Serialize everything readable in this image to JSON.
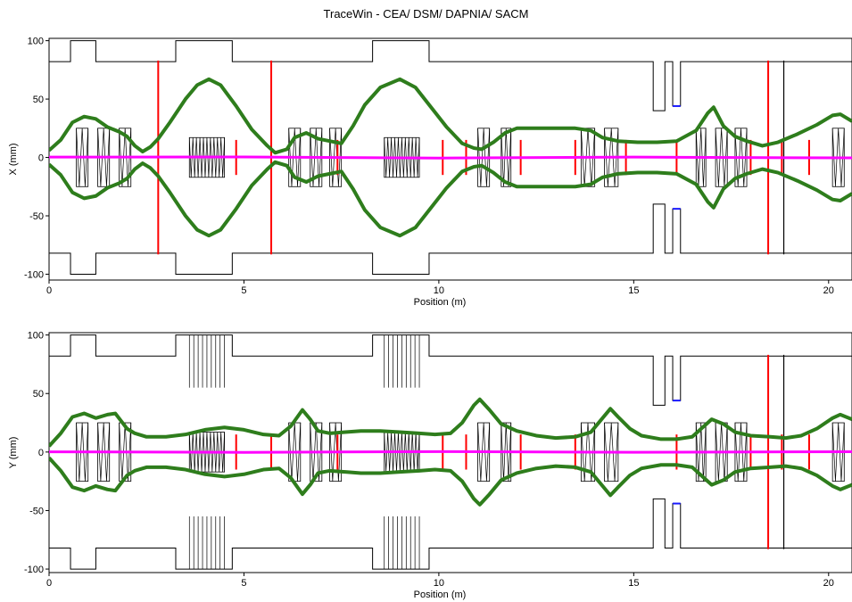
{
  "title": "TraceWin - CEA/ DSM/ DAPNIA/ SACM",
  "colors": {
    "envelope": "#2e7d1c",
    "centroid": "#ff00ff",
    "elements": "#000000",
    "marker": "#ff0000",
    "aperture_marker": "#1a1aff"
  },
  "chart_data": [
    {
      "type": "line",
      "name": "x-plane",
      "xlabel": "Position (m)",
      "ylabel": "X (mm)",
      "xlim": [
        0,
        20.6
      ],
      "ylim": [
        -105,
        102
      ],
      "xticks": [
        0,
        5,
        10,
        15,
        20
      ],
      "yticks": [
        -100,
        -50,
        0,
        50,
        100
      ],
      "grid": false,
      "aperture": [
        [
          0,
          82
        ],
        [
          0.55,
          82
        ],
        [
          0.55,
          100
        ],
        [
          1.2,
          100
        ],
        [
          1.2,
          82
        ],
        [
          3.25,
          82
        ],
        [
          3.25,
          100
        ],
        [
          4.7,
          100
        ],
        [
          4.7,
          82
        ],
        [
          8.3,
          82
        ],
        [
          8.3,
          100
        ],
        [
          9.75,
          100
        ],
        [
          9.75,
          82
        ],
        [
          15.5,
          82
        ],
        [
          15.5,
          40
        ],
        [
          15.8,
          40
        ],
        [
          15.8,
          82
        ],
        [
          16,
          82
        ],
        [
          16,
          44
        ],
        [
          16.2,
          44
        ],
        [
          16.2,
          82
        ],
        [
          20.6,
          82
        ]
      ],
      "envelope": [
        [
          0,
          6
        ],
        [
          0.3,
          15
        ],
        [
          0.6,
          30
        ],
        [
          0.9,
          35
        ],
        [
          1.2,
          33
        ],
        [
          1.5,
          26
        ],
        [
          1.8,
          22
        ],
        [
          2.0,
          18
        ],
        [
          2.2,
          10
        ],
        [
          2.4,
          5
        ],
        [
          2.6,
          9
        ],
        [
          2.8,
          16
        ],
        [
          3.1,
          30
        ],
        [
          3.5,
          50
        ],
        [
          3.8,
          62
        ],
        [
          4.1,
          67
        ],
        [
          4.4,
          62
        ],
        [
          4.8,
          44
        ],
        [
          5.2,
          24
        ],
        [
          5.6,
          10
        ],
        [
          5.8,
          4
        ],
        [
          6.1,
          7
        ],
        [
          6.3,
          17
        ],
        [
          6.6,
          21
        ],
        [
          6.9,
          16
        ],
        [
          7.2,
          14
        ],
        [
          7.5,
          12
        ],
        [
          7.8,
          27
        ],
        [
          8.1,
          45
        ],
        [
          8.5,
          60
        ],
        [
          9.0,
          67
        ],
        [
          9.4,
          60
        ],
        [
          9.8,
          43
        ],
        [
          10.2,
          26
        ],
        [
          10.6,
          12
        ],
        [
          10.9,
          8
        ],
        [
          11.1,
          7
        ],
        [
          11.4,
          13
        ],
        [
          11.7,
          21
        ],
        [
          12.0,
          25
        ],
        [
          12.5,
          25
        ],
        [
          13.0,
          25
        ],
        [
          13.5,
          25
        ],
        [
          13.9,
          23
        ],
        [
          14.2,
          17
        ],
        [
          14.6,
          14
        ],
        [
          15.1,
          13
        ],
        [
          15.6,
          13
        ],
        [
          16.1,
          14
        ],
        [
          16.6,
          23
        ],
        [
          16.9,
          38
        ],
        [
          17.05,
          43
        ],
        [
          17.3,
          27
        ],
        [
          17.6,
          18
        ],
        [
          17.9,
          14
        ],
        [
          18.3,
          10
        ],
        [
          18.7,
          13
        ],
        [
          19.2,
          20
        ],
        [
          19.7,
          28
        ],
        [
          20.1,
          36
        ],
        [
          20.3,
          37
        ],
        [
          20.6,
          31
        ]
      ],
      "centroid": [
        [
          0,
          0.3
        ],
        [
          5,
          0.4
        ],
        [
          10,
          -0.5
        ],
        [
          15,
          0.3
        ],
        [
          20.6,
          -0.4
        ]
      ],
      "markers": [
        [
          2.8,
          -83,
          83
        ],
        [
          5.7,
          -83,
          83
        ],
        [
          4.8,
          -15,
          15
        ],
        [
          7.4,
          -15,
          15
        ],
        [
          10.1,
          -15,
          15
        ],
        [
          10.7,
          -15,
          15
        ],
        [
          12.1,
          -15,
          15
        ],
        [
          13.5,
          -15,
          15
        ],
        [
          14.8,
          -15,
          15
        ],
        [
          16.1,
          -15,
          15
        ],
        [
          18.0,
          -15,
          15
        ],
        [
          18.45,
          -83,
          83
        ],
        [
          18.8,
          -15,
          15
        ],
        [
          19.5,
          -15,
          15
        ]
      ],
      "element_line": [
        18.85,
        -83,
        83
      ]
    },
    {
      "type": "line",
      "name": "y-plane",
      "xlabel": "Position (m)",
      "ylabel": "Y (mm)",
      "xlim": [
        0,
        20.6
      ],
      "ylim": [
        -103,
        102
      ],
      "xticks": [
        0,
        5,
        10,
        15,
        20
      ],
      "yticks": [
        -100,
        -50,
        0,
        50,
        100
      ],
      "grid": false,
      "aperture": [
        [
          0,
          82
        ],
        [
          0.55,
          82
        ],
        [
          0.55,
          100
        ],
        [
          1.2,
          100
        ],
        [
          1.2,
          82
        ],
        [
          3.25,
          82
        ],
        [
          3.25,
          100
        ],
        [
          4.7,
          100
        ],
        [
          4.7,
          82
        ],
        [
          8.3,
          82
        ],
        [
          8.3,
          100
        ],
        [
          9.75,
          100
        ],
        [
          9.75,
          82
        ],
        [
          15.5,
          82
        ],
        [
          15.5,
          40
        ],
        [
          15.8,
          40
        ],
        [
          15.8,
          82
        ],
        [
          16,
          82
        ],
        [
          16,
          44
        ],
        [
          16.2,
          44
        ],
        [
          16.2,
          82
        ],
        [
          20.6,
          82
        ]
      ],
      "envelope": [
        [
          0,
          5
        ],
        [
          0.3,
          16
        ],
        [
          0.6,
          30
        ],
        [
          0.9,
          33
        ],
        [
          1.2,
          29
        ],
        [
          1.5,
          32
        ],
        [
          1.7,
          33
        ],
        [
          2.0,
          20
        ],
        [
          2.2,
          16
        ],
        [
          2.5,
          13
        ],
        [
          3.0,
          13
        ],
        [
          3.5,
          15
        ],
        [
          4.0,
          19
        ],
        [
          4.5,
          21
        ],
        [
          5.0,
          19
        ],
        [
          5.5,
          15
        ],
        [
          5.9,
          14
        ],
        [
          6.2,
          22
        ],
        [
          6.5,
          36
        ],
        [
          6.7,
          28
        ],
        [
          6.9,
          18
        ],
        [
          7.2,
          16
        ],
        [
          7.6,
          17
        ],
        [
          8.0,
          18
        ],
        [
          8.5,
          18
        ],
        [
          9.0,
          17
        ],
        [
          9.5,
          16
        ],
        [
          9.9,
          15
        ],
        [
          10.3,
          16
        ],
        [
          10.6,
          25
        ],
        [
          10.9,
          40
        ],
        [
          11.05,
          45
        ],
        [
          11.3,
          36
        ],
        [
          11.6,
          24
        ],
        [
          12.0,
          18
        ],
        [
          12.5,
          14
        ],
        [
          13.0,
          12
        ],
        [
          13.5,
          13
        ],
        [
          13.9,
          17
        ],
        [
          14.2,
          29
        ],
        [
          14.4,
          37
        ],
        [
          14.6,
          30
        ],
        [
          14.9,
          20
        ],
        [
          15.2,
          14
        ],
        [
          15.7,
          11
        ],
        [
          16.1,
          11
        ],
        [
          16.5,
          13
        ],
        [
          16.8,
          22
        ],
        [
          17.0,
          28
        ],
        [
          17.3,
          24
        ],
        [
          17.6,
          17
        ],
        [
          18.0,
          14
        ],
        [
          18.5,
          13
        ],
        [
          18.9,
          12
        ],
        [
          19.3,
          14
        ],
        [
          19.7,
          20
        ],
        [
          20.1,
          29
        ],
        [
          20.3,
          32
        ],
        [
          20.6,
          28
        ]
      ],
      "centroid": [
        [
          0,
          0.2
        ],
        [
          5,
          -0.3
        ],
        [
          10,
          0.4
        ],
        [
          15,
          -0.2
        ],
        [
          20.6,
          0.3
        ]
      ],
      "markers": [
        [
          4.8,
          -15,
          15
        ],
        [
          5.7,
          -15,
          15
        ],
        [
          7.4,
          -15,
          15
        ],
        [
          10.1,
          -15,
          15
        ],
        [
          10.7,
          -15,
          15
        ],
        [
          12.1,
          -15,
          15
        ],
        [
          13.5,
          -15,
          15
        ],
        [
          16.1,
          -15,
          15
        ],
        [
          18.0,
          -15,
          15
        ],
        [
          18.45,
          -83,
          83
        ],
        [
          18.8,
          -15,
          15
        ],
        [
          19.5,
          -15,
          15
        ]
      ],
      "element_line": [
        18.85,
        -83,
        83
      ]
    }
  ]
}
